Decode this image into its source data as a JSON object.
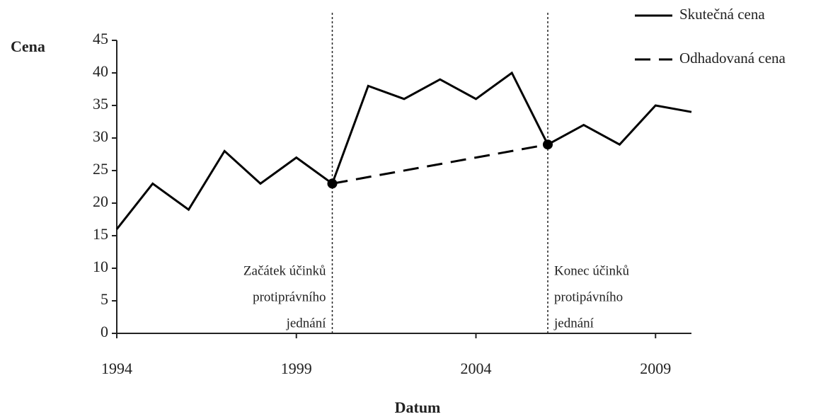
{
  "chart_data": {
    "type": "line",
    "ylabel": "Cena",
    "xlabel": "Datum",
    "xlim": [
      1994,
      2010
    ],
    "xticks": [
      1994,
      1999,
      2004,
      2009
    ],
    "ylim": [
      0,
      45
    ],
    "yticks": [
      0,
      5,
      10,
      15,
      20,
      25,
      30,
      35,
      40,
      45
    ],
    "legend": "top-right",
    "series": [
      {
        "name": "Skutečná cena",
        "color": "#000000",
        "style": "solid",
        "x": [
          1994,
          1995,
          1996,
          1997,
          1998,
          1999,
          2000,
          2001,
          2002,
          2003,
          2004,
          2005,
          2006,
          2007,
          2008,
          2009,
          2010
        ],
        "values": [
          16,
          23,
          19,
          28,
          23,
          27,
          23,
          38,
          36,
          39,
          36,
          40,
          29,
          32,
          29,
          35,
          34
        ]
      },
      {
        "name": "Odhadovaná cena",
        "color": "#000000",
        "style": "dashed",
        "marker": "circle",
        "x": [
          2000,
          2006
        ],
        "values": [
          23,
          29
        ]
      }
    ],
    "annotations": [
      {
        "x": 2000,
        "align": "left",
        "lines": [
          "Začátek účinků",
          "protiprávního",
          "jednání"
        ]
      },
      {
        "x": 2006,
        "align": "right",
        "lines": [
          "Konec účinků",
          "protipávního",
          "jednání"
        ]
      }
    ]
  }
}
